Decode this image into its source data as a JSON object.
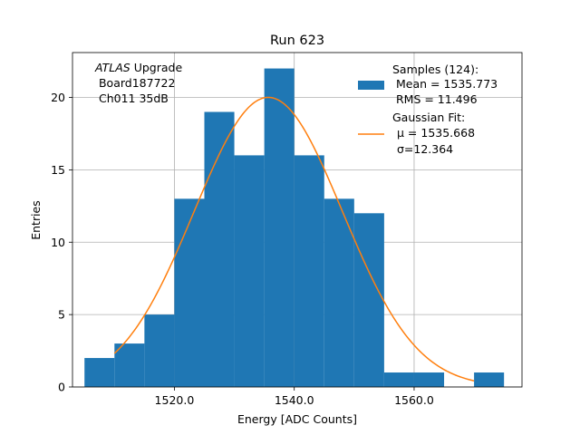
{
  "chart_data": {
    "type": "bar",
    "title": "Run 623",
    "xlabel": "Energy [ADC Counts]",
    "ylabel": "Entries",
    "xlim": [
      1503,
      1578
    ],
    "ylim": [
      0,
      23.1
    ],
    "xticks": [
      1520.0,
      1540.0,
      1560.0
    ],
    "xtick_labels": [
      "1520.0",
      "1540.0",
      "1560.0"
    ],
    "yticks": [
      0,
      5,
      10,
      15,
      20
    ],
    "ytick_labels": [
      "0",
      "5",
      "10",
      "15",
      "20"
    ],
    "grid": true,
    "bin_edges": [
      1505,
      1510,
      1515,
      1520,
      1525,
      1530,
      1535,
      1540,
      1545,
      1550,
      1555,
      1560,
      1565,
      1570,
      1575
    ],
    "counts": [
      2,
      3,
      5,
      13,
      19,
      16,
      22,
      16,
      13,
      12,
      1,
      1,
      0,
      1
    ],
    "bar_color": "#1f77b4",
    "fit": {
      "type": "gaussian",
      "mu": 1535.668,
      "sigma": 12.364,
      "x_range": [
        1510,
        1570
      ],
      "color": "#ff7f0e"
    },
    "annotation": {
      "italic": "ATLAS",
      "line1_rest": " Upgrade",
      "line2": " Board187722",
      "line3": " Ch011 35dB"
    },
    "legend": {
      "position": "upper right",
      "entries": [
        {
          "kind": "bar",
          "color": "#1f77b4",
          "lines": [
            "Samples (124):",
            " Mean = 1535.773",
            " RMS = 11.496"
          ]
        },
        {
          "kind": "line",
          "color": "#ff7f0e",
          "lines": [
            "Gaussian Fit:",
            "μ = 1535.668",
            "σ=12.364"
          ]
        }
      ]
    }
  }
}
